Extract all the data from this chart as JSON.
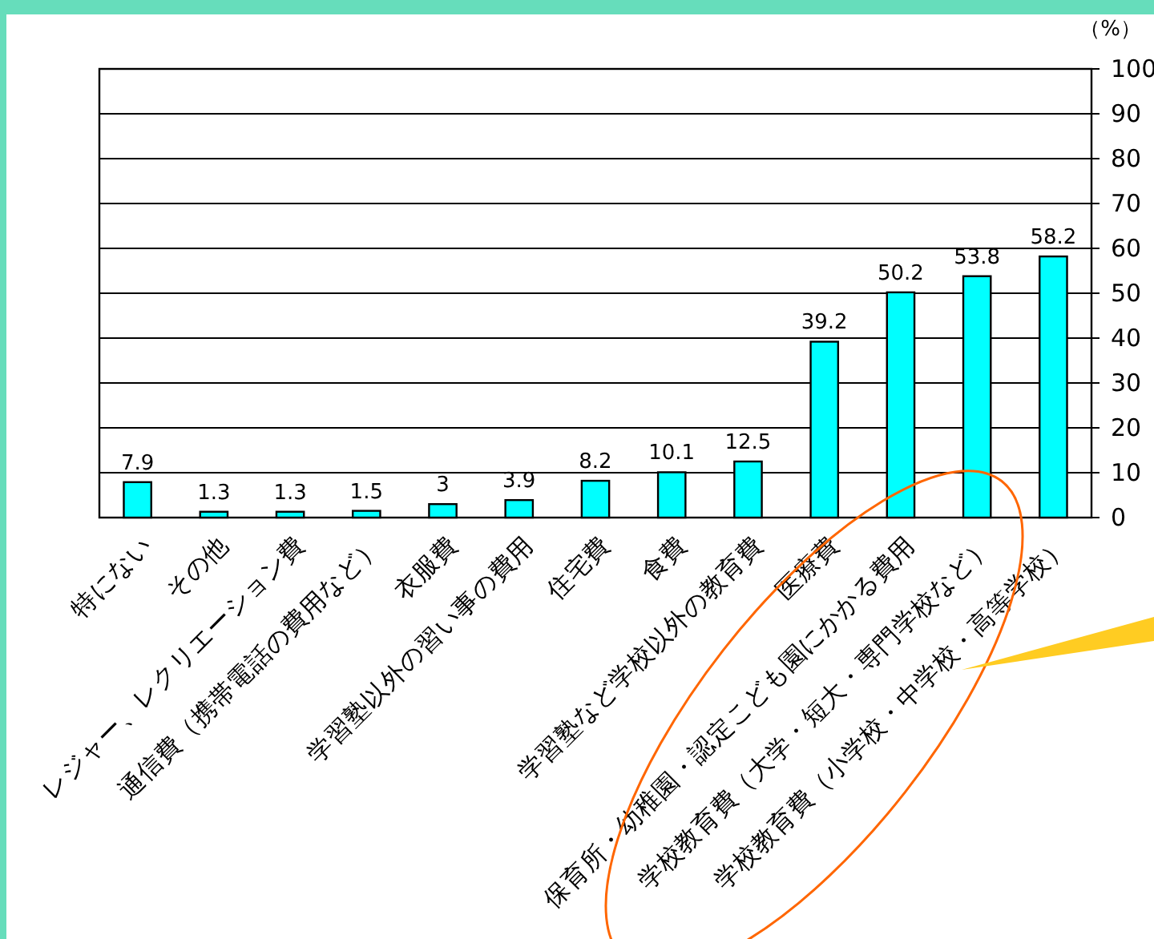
{
  "chart_data": {
    "type": "bar",
    "ylabel": "（%）",
    "categories": [
      "特にない",
      "その他",
      "レジャー、レクリエーション費",
      "通信費（携帯電話の費用など）",
      "衣服費",
      "学習塾以外の習い事の費用",
      "住宅費",
      "食費",
      "学習塾など学校以外の教育費",
      "医療費",
      "保育所・幼稚園・認定こども園にかかる費用",
      "学校教育費（大学・短大・専門学校など）",
      "学校教育費（小学校・中学校・高等学校）"
    ],
    "values": [
      7.9,
      1.3,
      1.3,
      1.5,
      3,
      3.9,
      8.2,
      10.1,
      12.5,
      39.2,
      50.2,
      53.8,
      58.2
    ],
    "color": "#00ffff",
    "ylim": [
      0,
      100
    ],
    "yticks": [
      0,
      10,
      20,
      30,
      40,
      50,
      60,
      70,
      80,
      90,
      100
    ],
    "grid": "y",
    "data_labels": true
  }
}
